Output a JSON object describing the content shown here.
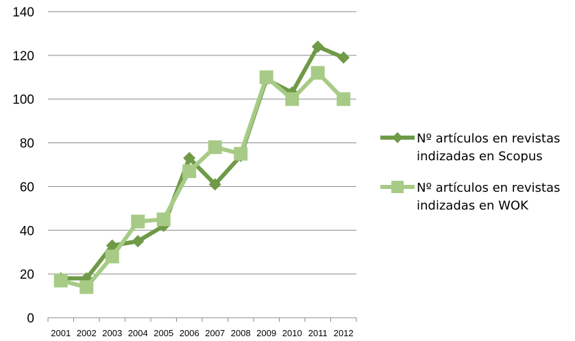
{
  "chart_data": {
    "type": "line",
    "x": [
      "2001",
      "2002",
      "2003",
      "2004",
      "2005",
      "2006",
      "2007",
      "2008",
      "2009",
      "2010",
      "2011",
      "2012"
    ],
    "series": [
      {
        "name": "Nº artículos en revistas indizadas en Scopus",
        "name_lines": [
          "Nº artículos en revistas",
          "indizadas en Scopus"
        ],
        "values": [
          18,
          18,
          33,
          35,
          42,
          73,
          61,
          74,
          109,
          103,
          124,
          119
        ],
        "color": "#6f9a47",
        "marker": "diamond"
      },
      {
        "name": "Nº artículos en revistas indizadas en WOK",
        "name_lines": [
          "Nº artículos en revistas",
          "indizadas en WOK"
        ],
        "values": [
          17,
          14,
          28,
          44,
          45,
          67,
          78,
          75,
          110,
          100,
          112,
          100
        ],
        "color": "#a7cb86",
        "marker": "square"
      }
    ],
    "yticks": [
      "0",
      "20",
      "40",
      "60",
      "80",
      "100",
      "120",
      "140"
    ],
    "ylim": [
      0,
      140
    ],
    "grid": true,
    "legend_position": "right"
  }
}
